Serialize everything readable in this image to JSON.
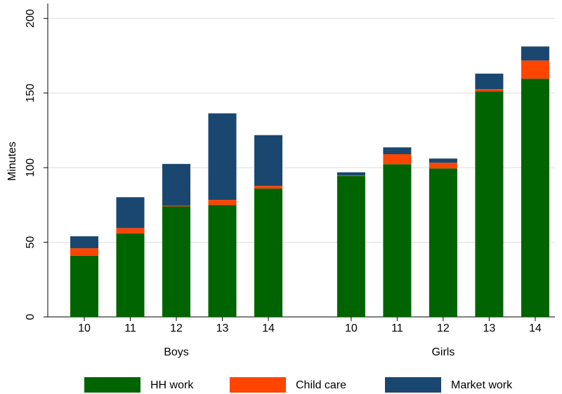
{
  "chart_data": {
    "type": "bar",
    "stacked": true,
    "y_label": "Minutes",
    "groups": [
      "Boys",
      "Girls"
    ],
    "categories": [
      [
        "10",
        "11",
        "12",
        "13",
        "14"
      ],
      [
        "10",
        "11",
        "12",
        "13",
        "14"
      ]
    ],
    "series": [
      {
        "name": "HH work",
        "color": "#006400",
        "values": [
          [
            41,
            56,
            74,
            75,
            86
          ],
          [
            94.4,
            102.3,
            99.5,
            151.2,
            159.6
          ]
        ]
      },
      {
        "name": "Child care",
        "color": "#ff4500",
        "values": [
          [
            5,
            3.5,
            0.5,
            3.4,
            1.8
          ],
          [
            0.5,
            6.7,
            3.8,
            1.4,
            12.2
          ]
        ]
      },
      {
        "name": "Market work",
        "color": "#1a476f",
        "values": [
          [
            8,
            20.7,
            28,
            58,
            34
          ],
          [
            2,
            4.6,
            2.8,
            10.4,
            9.4
          ]
        ]
      }
    ],
    "ylim": [
      0,
      210
    ],
    "yticks": [
      0,
      50,
      100,
      150,
      200
    ],
    "grid": true,
    "legend": "bottom"
  }
}
